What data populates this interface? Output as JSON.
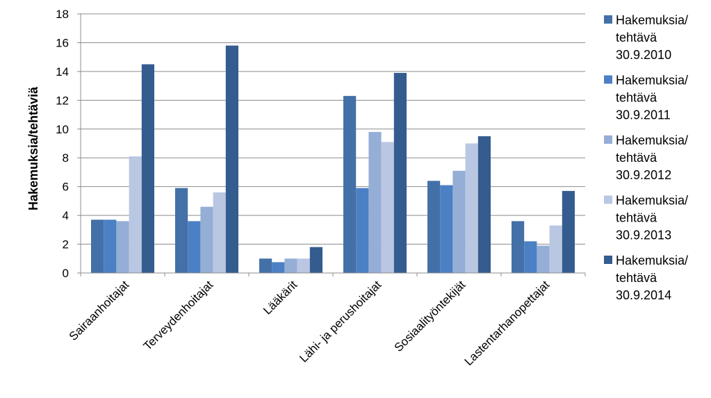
{
  "chart_data": {
    "type": "bar",
    "title": "",
    "xlabel": "",
    "ylabel": "Hakemuksia/tehtäviä",
    "ylim": [
      0,
      18
    ],
    "yticks": [
      0,
      2,
      4,
      6,
      8,
      10,
      12,
      14,
      16,
      18
    ],
    "grid": true,
    "legend_position": "right",
    "categories": [
      "Sairaanhoitajat",
      "Terveydenhoitajat",
      "Lääkärit",
      "Lähi- ja perushoitajat",
      "Sosiaalityöntekijät",
      "Lastentarhanopettajat"
    ],
    "series": [
      {
        "name": "Hakemuksia/ tehtävä 30.9.2010",
        "legend_lines": [
          "Hakemuksia/",
          "tehtävä",
          "30.9.2010"
        ],
        "color": "#4470A8",
        "values": [
          3.7,
          5.9,
          1.0,
          12.3,
          6.4,
          3.6
        ]
      },
      {
        "name": "Hakemuksia/ tehtävä 30.9.2011",
        "legend_lines": [
          "Hakemuksia/",
          "tehtävä",
          "30.9.2011"
        ],
        "color": "#4B80C4",
        "values": [
          3.7,
          3.6,
          0.75,
          5.9,
          6.1,
          2.2
        ]
      },
      {
        "name": "Hakemuksia/ tehtävä 30.9.2012",
        "legend_lines": [
          "Hakemuksia/",
          "tehtävä",
          "30.9.2012"
        ],
        "color": "#95AED6",
        "values": [
          3.6,
          4.6,
          1.0,
          9.8,
          7.1,
          1.9
        ]
      },
      {
        "name": "Hakemuksia/ tehtävä 30.9.2013",
        "legend_lines": [
          "Hakemuksia/",
          "tehtävä",
          "30.9.2013"
        ],
        "color": "#BAC7E2",
        "values": [
          8.1,
          5.6,
          1.0,
          9.1,
          9.0,
          3.3
        ]
      },
      {
        "name": "Hakemuksia/ tehtävä 30.9.2014",
        "legend_lines": [
          "Hakemuksia/",
          "tehtävä",
          "30.9.2014"
        ],
        "color": "#355C8F",
        "values": [
          14.5,
          15.8,
          1.8,
          13.9,
          9.5,
          5.7
        ]
      }
    ]
  }
}
